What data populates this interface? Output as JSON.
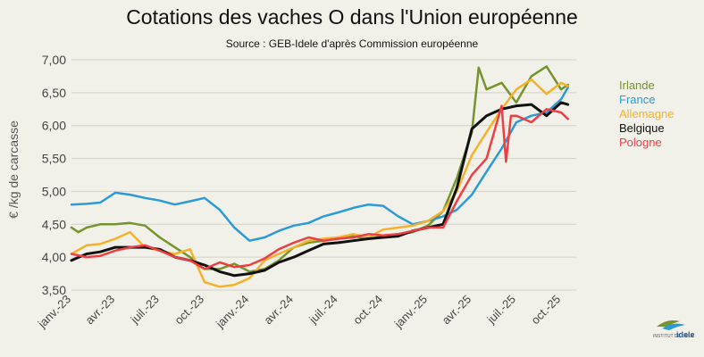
{
  "title": "Cotations des vaches O dans l'Union européenne",
  "subtitle": "Source : GEB-Idele d'après Commission européenne",
  "logo_text": "idele",
  "chart_data": {
    "type": "line",
    "ylabel": "€ /kg de carcasse",
    "xlabel": "",
    "ylim": [
      3.5,
      7.0
    ],
    "yticks": [
      "3,50",
      "4,00",
      "4,50",
      "5,00",
      "5,50",
      "6,00",
      "6,50",
      "7,00"
    ],
    "ytick_values": [
      3.5,
      4.0,
      4.5,
      5.0,
      5.5,
      6.0,
      6.5,
      7.0
    ],
    "xlim": [
      "2023-01",
      "2025-11"
    ],
    "xticks": [
      "janv.-23",
      "avr.-23",
      "juil.-23",
      "oct.-23",
      "janv.-24",
      "avr.-24",
      "juil.-24",
      "oct.-24",
      "janv.-25",
      "avr.-25",
      "juil.-25",
      "oct.-25"
    ],
    "xtick_dates": [
      "2023-01-01",
      "2023-04-01",
      "2023-07-01",
      "2023-10-01",
      "2024-01-01",
      "2024-04-01",
      "2024-07-01",
      "2024-10-01",
      "2025-01-01",
      "2025-04-01",
      "2025-07-01",
      "2025-10-01"
    ],
    "grid": "horizontal",
    "legend_position": "right",
    "series": [
      {
        "name": "Irlande",
        "color": "#76942d",
        "x": [
          "2023-01-01",
          "2023-01-15",
          "2023-02-01",
          "2023-03-01",
          "2023-04-01",
          "2023-05-01",
          "2023-06-01",
          "2023-07-01",
          "2023-08-01",
          "2023-09-01",
          "2023-10-01",
          "2023-11-01",
          "2023-12-01",
          "2024-01-01",
          "2024-02-01",
          "2024-03-01",
          "2024-04-01",
          "2024-05-01",
          "2024-06-01",
          "2024-07-01",
          "2024-08-01",
          "2024-09-01",
          "2024-10-01",
          "2024-11-01",
          "2024-12-01",
          "2025-01-01",
          "2025-02-01",
          "2025-03-01",
          "2025-04-01",
          "2025-04-15",
          "2025-05-01",
          "2025-06-01",
          "2025-07-01",
          "2025-08-01",
          "2025-09-01",
          "2025-10-01",
          "2025-10-15"
        ],
        "y": [
          4.45,
          4.38,
          4.45,
          4.5,
          4.5,
          4.52,
          4.48,
          4.3,
          4.15,
          4.0,
          3.82,
          3.82,
          3.9,
          3.78,
          3.82,
          3.95,
          4.15,
          4.22,
          4.25,
          4.3,
          4.32,
          4.28,
          4.32,
          4.35,
          4.38,
          4.48,
          4.7,
          5.2,
          5.9,
          6.88,
          6.55,
          6.65,
          6.35,
          6.75,
          6.9,
          6.55,
          6.62
        ]
      },
      {
        "name": "France",
        "color": "#2b9ad6",
        "x": [
          "2023-01-01",
          "2023-02-01",
          "2023-03-01",
          "2023-04-01",
          "2023-05-01",
          "2023-06-01",
          "2023-07-01",
          "2023-08-01",
          "2023-09-01",
          "2023-10-01",
          "2023-11-01",
          "2023-12-01",
          "2024-01-01",
          "2024-02-01",
          "2024-03-01",
          "2024-04-01",
          "2024-05-01",
          "2024-06-01",
          "2024-07-01",
          "2024-08-01",
          "2024-09-01",
          "2024-10-01",
          "2024-11-01",
          "2024-12-01",
          "2025-01-01",
          "2025-02-01",
          "2025-03-01",
          "2025-04-01",
          "2025-05-01",
          "2025-06-01",
          "2025-07-01",
          "2025-08-01",
          "2025-09-01",
          "2025-10-01",
          "2025-10-15"
        ],
        "y": [
          4.8,
          4.81,
          4.83,
          4.98,
          4.95,
          4.9,
          4.86,
          4.8,
          4.85,
          4.9,
          4.72,
          4.45,
          4.25,
          4.3,
          4.4,
          4.48,
          4.52,
          4.62,
          4.68,
          4.75,
          4.8,
          4.78,
          4.62,
          4.5,
          4.55,
          4.62,
          4.72,
          4.95,
          5.3,
          5.65,
          6.05,
          6.15,
          6.2,
          6.4,
          6.58
        ]
      },
      {
        "name": "Allemagne",
        "color": "#f5b12a",
        "x": [
          "2023-01-01",
          "2023-02-01",
          "2023-03-01",
          "2023-04-01",
          "2023-05-01",
          "2023-06-01",
          "2023-07-01",
          "2023-08-01",
          "2023-09-01",
          "2023-10-01",
          "2023-11-01",
          "2023-12-01",
          "2024-01-01",
          "2024-02-01",
          "2024-03-01",
          "2024-04-01",
          "2024-05-01",
          "2024-06-01",
          "2024-07-01",
          "2024-08-01",
          "2024-09-01",
          "2024-10-01",
          "2024-11-01",
          "2024-12-01",
          "2025-01-01",
          "2025-02-01",
          "2025-03-01",
          "2025-04-01",
          "2025-05-01",
          "2025-06-01",
          "2025-07-01",
          "2025-08-01",
          "2025-09-01",
          "2025-10-01",
          "2025-10-15"
        ],
        "y": [
          4.05,
          4.18,
          4.2,
          4.28,
          4.38,
          4.15,
          4.1,
          4.05,
          4.12,
          3.62,
          3.55,
          3.58,
          3.68,
          3.95,
          4.05,
          4.15,
          4.25,
          4.28,
          4.3,
          4.35,
          4.3,
          4.42,
          4.45,
          4.48,
          4.55,
          4.7,
          5.0,
          5.55,
          5.9,
          6.25,
          6.55,
          6.7,
          6.48,
          6.65,
          6.6
        ]
      },
      {
        "name": "Belgique",
        "color": "#111111",
        "x": [
          "2023-01-01",
          "2023-02-01",
          "2023-03-01",
          "2023-04-01",
          "2023-05-01",
          "2023-06-01",
          "2023-07-01",
          "2023-08-01",
          "2023-09-01",
          "2023-10-01",
          "2023-11-01",
          "2023-12-01",
          "2024-01-01",
          "2024-02-01",
          "2024-03-01",
          "2024-04-01",
          "2024-05-01",
          "2024-06-01",
          "2024-07-01",
          "2024-08-01",
          "2024-09-01",
          "2024-10-01",
          "2024-11-01",
          "2024-12-01",
          "2025-01-01",
          "2025-02-01",
          "2025-03-01",
          "2025-04-01",
          "2025-05-01",
          "2025-06-01",
          "2025-07-01",
          "2025-08-01",
          "2025-09-01",
          "2025-10-01",
          "2025-10-15"
        ],
        "y": [
          3.95,
          4.05,
          4.08,
          4.15,
          4.15,
          4.15,
          4.12,
          4.0,
          3.95,
          3.88,
          3.78,
          3.72,
          3.75,
          3.8,
          3.92,
          4.0,
          4.1,
          4.2,
          4.22,
          4.25,
          4.28,
          4.3,
          4.32,
          4.4,
          4.45,
          4.5,
          5.05,
          5.95,
          6.15,
          6.25,
          6.3,
          6.32,
          6.15,
          6.35,
          6.32
        ]
      },
      {
        "name": "Pologne",
        "color": "#ef3e42",
        "x": [
          "2023-01-01",
          "2023-02-01",
          "2023-03-01",
          "2023-04-01",
          "2023-05-01",
          "2023-06-01",
          "2023-07-01",
          "2023-08-01",
          "2023-09-01",
          "2023-10-01",
          "2023-11-01",
          "2023-12-01",
          "2024-01-01",
          "2024-02-01",
          "2024-03-01",
          "2024-04-01",
          "2024-05-01",
          "2024-06-01",
          "2024-07-01",
          "2024-08-01",
          "2024-09-01",
          "2024-10-01",
          "2024-11-01",
          "2024-12-01",
          "2025-01-01",
          "2025-02-01",
          "2025-03-01",
          "2025-04-01",
          "2025-05-01",
          "2025-06-01",
          "2025-06-10",
          "2025-06-20",
          "2025-07-01",
          "2025-08-01",
          "2025-09-01",
          "2025-10-01",
          "2025-10-15"
        ],
        "y": [
          4.05,
          4.0,
          4.02,
          4.1,
          4.15,
          4.18,
          4.1,
          4.0,
          3.95,
          3.82,
          3.92,
          3.85,
          3.88,
          3.98,
          4.12,
          4.22,
          4.3,
          4.25,
          4.28,
          4.3,
          4.35,
          4.33,
          4.35,
          4.4,
          4.45,
          4.45,
          4.85,
          5.25,
          5.5,
          6.3,
          5.45,
          6.15,
          6.15,
          6.05,
          6.25,
          6.2,
          6.1
        ]
      }
    ]
  }
}
